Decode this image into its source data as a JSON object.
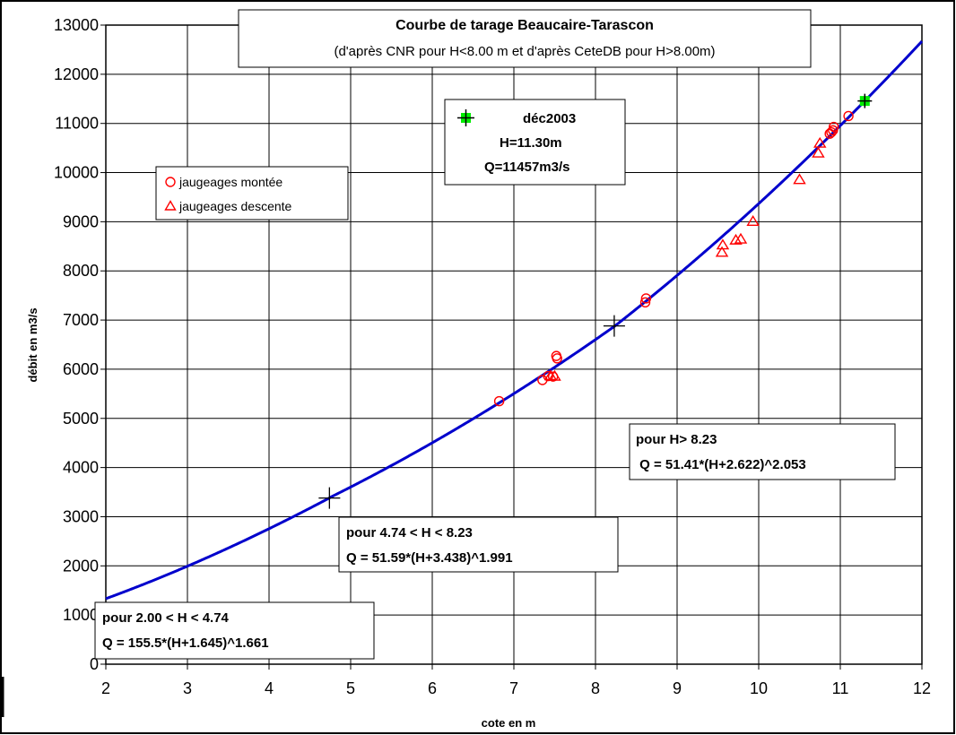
{
  "chart_data": {
    "type": "scatter",
    "title": "Courbe de tarage Beaucaire-Tarascon",
    "subtitle": "(d'après CNR pour H<8.00 m et d'après CeteDB pour H>8.00m)",
    "xlabel": "cote en m",
    "ylabel": "débit en m3/s",
    "xlim": [
      2,
      12
    ],
    "ylim": [
      0,
      13000
    ],
    "x_ticks": [
      2,
      3,
      4,
      5,
      6,
      7,
      8,
      9,
      10,
      11,
      12
    ],
    "y_ticks": [
      0,
      1000,
      2000,
      3000,
      4000,
      5000,
      6000,
      7000,
      8000,
      9000,
      10000,
      11000,
      12000,
      13000
    ],
    "grid": true,
    "rating_curve": {
      "color": "#0000cc",
      "segments": [
        {
          "h_min": 2.0,
          "h_max": 4.74,
          "a": 155.5,
          "b": 1.645,
          "n": 1.661
        },
        {
          "h_min": 4.74,
          "h_max": 8.23,
          "a": 51.59,
          "b": 3.438,
          "n": 1.991
        },
        {
          "h_min": 8.23,
          "h_max": 12.0,
          "a": 51.41,
          "b": 2.622,
          "n": 2.053
        }
      ]
    },
    "series": [
      {
        "name": "jaugeages montée",
        "marker": "circle",
        "color": "#ff0000",
        "x": [
          6.82,
          7.35,
          7.42,
          7.48,
          7.52,
          7.53,
          8.61,
          8.62,
          10.87,
          10.89,
          10.91,
          10.92,
          11.1
        ],
        "y": [
          5350,
          5780,
          5860,
          5850,
          6270,
          6220,
          7360,
          7440,
          10790,
          10820,
          10860,
          10930,
          11150
        ]
      },
      {
        "name": "jaugeages descente",
        "marker": "triangle",
        "color": "#ff0000",
        "x": [
          7.45,
          7.5,
          9.55,
          9.56,
          9.72,
          9.78,
          9.93,
          10.5,
          10.73,
          10.75
        ],
        "y": [
          5860,
          5850,
          8370,
          8520,
          8620,
          8640,
          9000,
          9850,
          10390,
          10590
        ]
      }
    ],
    "breakpoints": [
      {
        "x": 4.74,
        "y": 3380
      },
      {
        "x": 8.23,
        "y": 6880
      }
    ],
    "highlight_point": {
      "x": 11.3,
      "y": 11457,
      "color": "#00ee00"
    },
    "annotations": {
      "event_label": "déc2003",
      "event_h": "H=11.30m",
      "event_q": "Q=11457m3/s",
      "range1_line1": "pour  2.00 < H < 4.74",
      "range1_line2": "Q =  155.5*(H+1.645)^1.661",
      "range2_line1": "pour  4.74 < H < 8.23",
      "range2_line2": "Q =  51.59*(H+3.438)^1.991",
      "range3_line1": "pour H> 8.23",
      "range3_line2": " Q = 51.41*(H+2.622)^2.053"
    }
  }
}
